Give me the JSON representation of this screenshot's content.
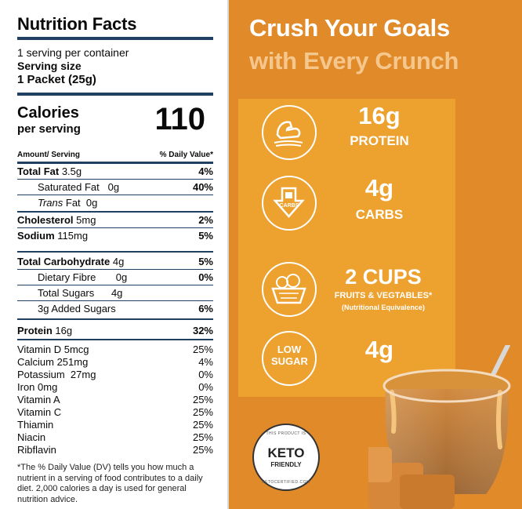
{
  "label": {
    "title": "Nutrition Facts",
    "servings_per_container": "1 serving per container",
    "serving_size_label": "Serving size",
    "serving_size_value": "1 Packet (25g)",
    "calories_label": "Calories",
    "calories_sub": "per serving",
    "calories_value": "110",
    "header_left": "Amount/ Serving",
    "header_right": "% Daily Value*",
    "rows": [
      {
        "name": "Total Fat",
        "amount": "3.5g",
        "pct": "4%"
      },
      {
        "name": "Saturated Fat",
        "amount": "0g",
        "pct": "40%"
      },
      {
        "name": "Trans",
        "name_suffix": " Fat",
        "amount": "0g",
        "pct": ""
      },
      {
        "name": "Cholesterol",
        "amount": "5mg",
        "pct": "2%"
      },
      {
        "name": "Sodium",
        "amount": "115mg",
        "pct": "5%"
      },
      {
        "name": "Total Carbohydrate",
        "amount": "4g",
        "pct": "5%"
      },
      {
        "name": "Dietary Fibre",
        "amount": "0g",
        "pct": "0%"
      },
      {
        "name": "Total Sugars",
        "amount": "4g",
        "pct": ""
      },
      {
        "name": "3g Added Sugars",
        "amount": "",
        "pct": "6%"
      },
      {
        "name": "Protein",
        "amount": "16g",
        "pct": "32%"
      }
    ],
    "vitamins": [
      {
        "name": "Vitamin D 5mcg",
        "pct": "25%"
      },
      {
        "name": "Calcium 251mg",
        "pct": "4%"
      },
      {
        "name": "Potassium  27mg",
        "pct": "0%"
      },
      {
        "name": "Iron 0mg",
        "pct": "0%"
      },
      {
        "name": "Vitamin A",
        "pct": "25%"
      },
      {
        "name": "Vitamin C",
        "pct": "25%"
      },
      {
        "name": "Thiamin",
        "pct": "25%"
      },
      {
        "name": "Niacin",
        "pct": "25%"
      },
      {
        "name": "Ribflavin",
        "pct": "25%"
      }
    ],
    "footnote": "*The % Daily Value (DV) tells you how much a nutrient in a serving of food contributes to a daily diet. 2,000 calories a day is used for general nutrition advice."
  },
  "promo": {
    "headline_line1": "Crush Your Goals",
    "headline_line2": "with Every Crunch",
    "features": [
      {
        "icon": "muscle-arm-icon",
        "big": "16g",
        "small": "PROTEIN"
      },
      {
        "icon": "carbs-arrow-icon",
        "icon_text": "CARBS",
        "big": "4g",
        "small": "CARBS"
      },
      {
        "icon": "fruit-basket-icon",
        "big": "2 CUPS",
        "small": "FRUITS & VEGTABLES*",
        "note": "(Nutritional Equivalence)"
      },
      {
        "icon": "low-sugar-icon",
        "icon_text": "LOW SUGAR",
        "big": "4g",
        "small": ""
      }
    ],
    "badge": {
      "top_text": "THIS PRODUCT IS",
      "title": "KETO",
      "sub": "FRIENDLY",
      "bottom_text": "KETOCERTIFIED.COM"
    }
  },
  "colors": {
    "background_orange": "#e08a2a",
    "panel_orange": "#eda12e",
    "navy_rule": "#1f3f63",
    "headline_light": "#f6c78d"
  }
}
